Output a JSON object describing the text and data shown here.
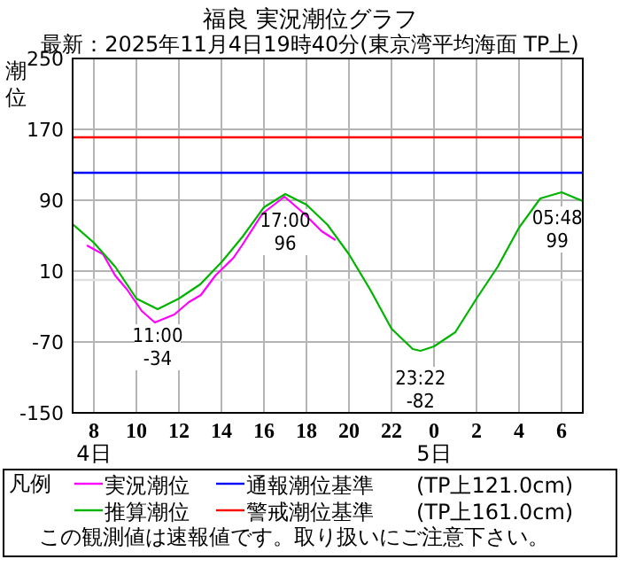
{
  "chart_data": {
    "type": "line",
    "title": "福良 実況潮位グラフ",
    "subtitle": "最新：2025年11月4日19時40分(東京湾平均海面 TP上)",
    "ylabel": "潮位",
    "legend_title": "凡例",
    "xlim": [
      "2025-11-04T07:00",
      "2025-11-05T07:00"
    ],
    "ylim": [
      -150,
      250
    ],
    "xticks": [
      {
        "value": "2025-11-04T08:00",
        "label": "8\n4日"
      },
      {
        "value": "2025-11-04T10:00",
        "label": "10"
      },
      {
        "value": "2025-11-04T12:00",
        "label": "12"
      },
      {
        "value": "2025-11-04T14:00",
        "label": "14"
      },
      {
        "value": "2025-11-04T16:00",
        "label": "16"
      },
      {
        "value": "2025-11-04T18:00",
        "label": "18"
      },
      {
        "value": "2025-11-04T20:00",
        "label": "20"
      },
      {
        "value": "2025-11-04T22:00",
        "label": "22"
      },
      {
        "value": "2025-11-05T00:00",
        "label": "0\n5日"
      },
      {
        "value": "2025-11-05T02:00",
        "label": "2"
      },
      {
        "value": "2025-11-05T04:00",
        "label": "4"
      },
      {
        "value": "2025-11-05T06:00",
        "label": "6"
      }
    ],
    "yticks": [
      -150,
      -70,
      10,
      90,
      170,
      250
    ],
    "grid": true,
    "legend": "bottom",
    "series": [
      {
        "name": "実況潮位",
        "color": "#ff00ff",
        "x": [
          "2025-11-04T07:40",
          "2025-11-04T08:26",
          "2025-11-04T09:00",
          "2025-11-04T09:34",
          "2025-11-04T10:15",
          "2025-11-04T10:52",
          "2025-11-04T11:47",
          "2025-11-04T12:28",
          "2025-11-04T13:02",
          "2025-11-04T13:43",
          "2025-11-04T14:34",
          "2025-11-04T14:58",
          "2025-11-04T15:56",
          "2025-11-04T16:58",
          "2025-11-04T17:53",
          "2025-11-04T18:43",
          "2025-11-04T19:22"
        ],
        "values": [
          39,
          29,
          5,
          -11,
          -35,
          -48,
          -39,
          -25,
          -17,
          5,
          25,
          39,
          75,
          94,
          75,
          55,
          45
        ]
      },
      {
        "name": "推算潮位",
        "color": "#00b400",
        "x": [
          "2025-11-04T07:00",
          "2025-11-04T08:00",
          "2025-11-04T09:00",
          "2025-11-04T10:00",
          "2025-11-04T11:00",
          "2025-11-04T12:00",
          "2025-11-04T13:00",
          "2025-11-04T14:00",
          "2025-11-04T15:00",
          "2025-11-04T16:00",
          "2025-11-04T17:00",
          "2025-11-04T18:00",
          "2025-11-04T19:00",
          "2025-11-04T20:00",
          "2025-11-04T21:00",
          "2025-11-04T22:00",
          "2025-11-04T23:00",
          "2025-11-04T23:22",
          "2025-11-05T00:00",
          "2025-11-05T01:00",
          "2025-11-05T02:00",
          "2025-11-05T03:00",
          "2025-11-05T04:00",
          "2025-11-05T05:00",
          "2025-11-05T06:00",
          "2025-11-05T07:00"
        ],
        "values": [
          63,
          42,
          15,
          -21,
          -33,
          -21,
          -5,
          20,
          49,
          82,
          97,
          85,
          62,
          29,
          -11,
          -55,
          -78,
          -80,
          -75,
          -59,
          -21,
          15,
          59,
          92,
          99,
          89
        ]
      }
    ],
    "ref_lines": [
      {
        "axis": "y",
        "value": 0,
        "color": "#e0e0e0"
      },
      {
        "axis": "y",
        "value": 121,
        "label": "通報潮位基準　　(TP上121.0cm)",
        "color": "#0000ff"
      },
      {
        "axis": "y",
        "value": 161,
        "label": "警戒潮位基準　　(TP上161.0cm)",
        "color": "#ff0000"
      }
    ],
    "annotations": [
      {
        "text": "11:00\n-34",
        "x": "2025-11-04T11:00",
        "y": -34
      },
      {
        "text": "17:00\n96",
        "x": "2025-11-04T17:00",
        "y": 96
      },
      {
        "text": "23:22\n-82",
        "x": "2025-11-04T23:22",
        "y": -82
      },
      {
        "text": "05:48\n99",
        "x": "2025-11-05T05:48",
        "y": 99
      },
      "この観測値は速報値です。取り扱いにご注意下さい。"
    ]
  }
}
